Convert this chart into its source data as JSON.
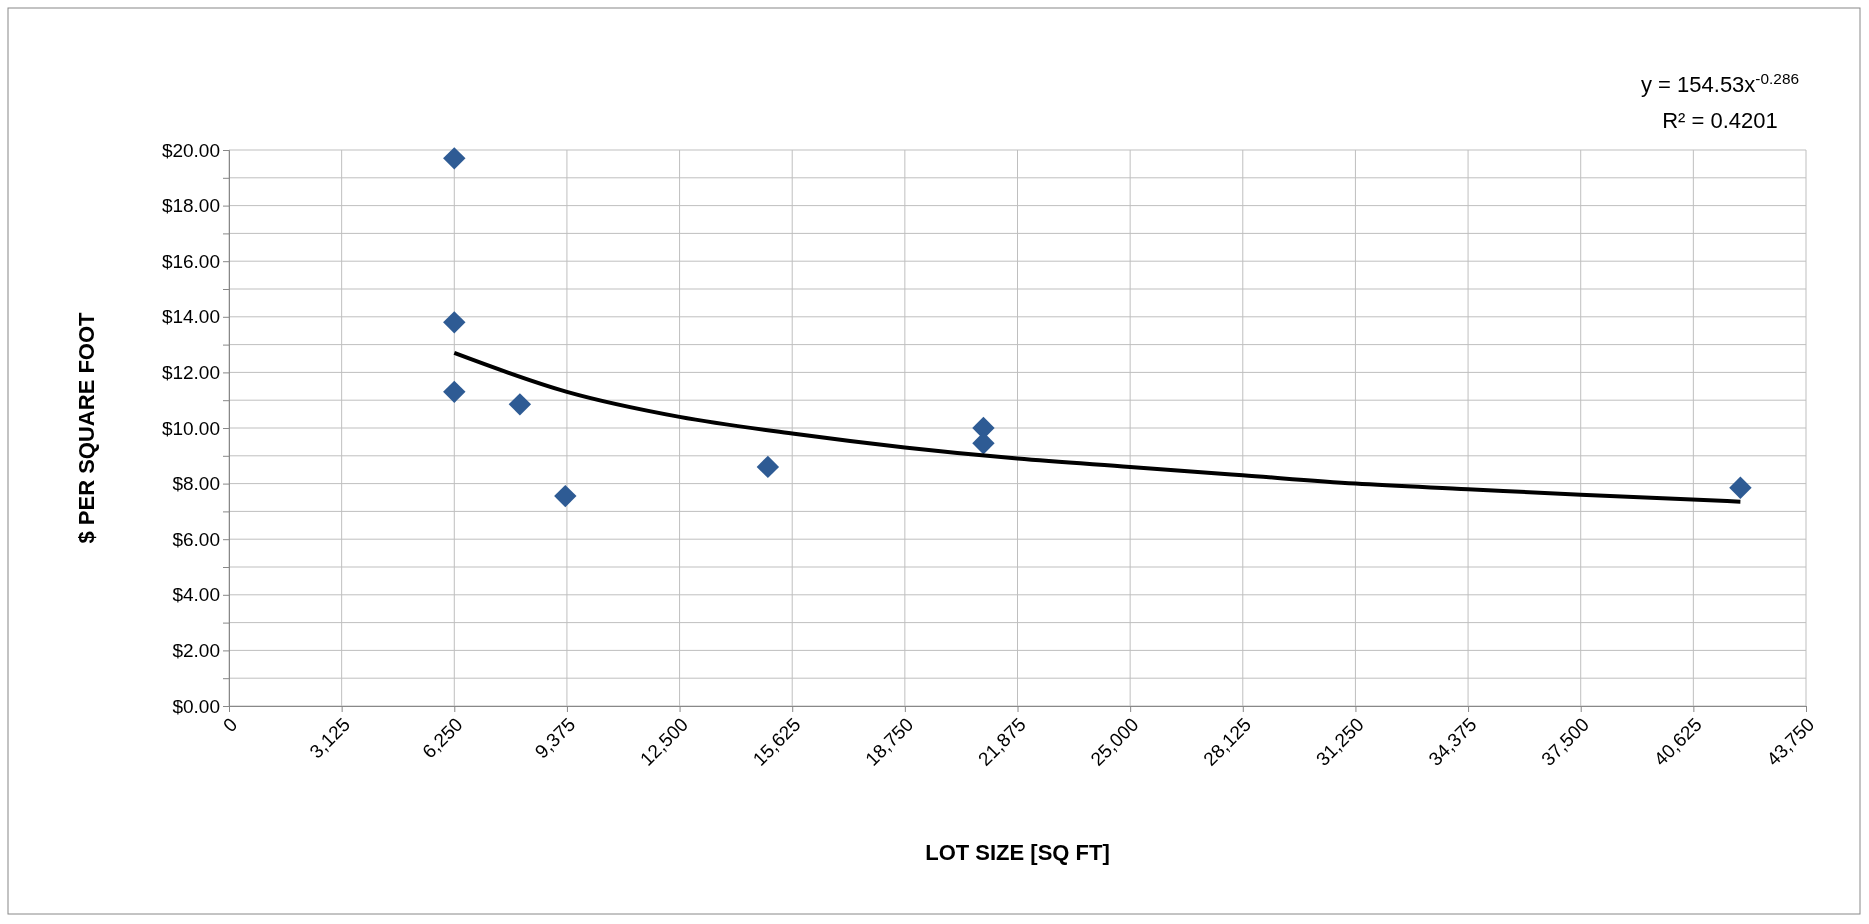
{
  "chart_data": {
    "type": "scatter",
    "xlabel": "LOT SIZE [SQ FT]",
    "ylabel": "$ PER SQUARE FOOT",
    "annotations": [
      "y = 154.53x$^{-0.286}$",
      "R² = 0.4201"
    ],
    "series": [
      {
        "color": "#2e5b94",
        "marker": "diamond",
        "x": [
          6250,
          6250,
          6250,
          8070,
          9330,
          14950,
          20930,
          20930,
          41930
        ],
        "values": [
          19.7,
          13.8,
          11.3,
          10.85,
          7.55,
          8.6,
          10.0,
          9.45,
          7.85
        ]
      },
      {
        "type": "line",
        "color": "#000000",
        "marker": "none",
        "x": [
          6250,
          9375,
          12500,
          15625,
          18750,
          21875,
          25000,
          28125,
          31250,
          34375,
          37500,
          41930
        ],
        "values": [
          12.7,
          11.3,
          10.4,
          9.8,
          9.3,
          8.9,
          8.6,
          8.3,
          8.0,
          7.8,
          7.6,
          7.35
        ]
      }
    ],
    "xlim": [
      0,
      43750
    ],
    "xticks": [
      {
        "value": 0,
        "label": "0"
      },
      {
        "value": 3125,
        "label": "3,125"
      },
      {
        "value": 6250,
        "label": "6,250"
      },
      {
        "value": 9375,
        "label": "9,375"
      },
      {
        "value": 12500,
        "label": "12,500"
      },
      {
        "value": 15625,
        "label": "15,625"
      },
      {
        "value": 18750,
        "label": "18,750"
      },
      {
        "value": 21875,
        "label": "21,875"
      },
      {
        "value": 25000,
        "label": "25,000"
      },
      {
        "value": 28125,
        "label": "28,125"
      },
      {
        "value": 31250,
        "label": "31,250"
      },
      {
        "value": 34375,
        "label": "34,375"
      },
      {
        "value": 37500,
        "label": "37,500"
      },
      {
        "value": 40625,
        "label": "40,625"
      },
      {
        "value": 43750,
        "label": "43,750"
      }
    ],
    "ylim": [
      0,
      20
    ],
    "yticks": [
      {
        "value": 0,
        "label": "$0.00"
      },
      {
        "value": 1,
        "label": null
      },
      {
        "value": 2,
        "label": "$2.00"
      },
      {
        "value": 3,
        "label": null
      },
      {
        "value": 4,
        "label": "$4.00"
      },
      {
        "value": 5,
        "label": null
      },
      {
        "value": 6,
        "label": "$6.00"
      },
      {
        "value": 7,
        "label": null
      },
      {
        "value": 8,
        "label": "$8.00"
      },
      {
        "value": 9,
        "label": null
      },
      {
        "value": 10,
        "label": "$10.00"
      },
      {
        "value": 11,
        "label": null
      },
      {
        "value": 12,
        "label": "$12.00"
      },
      {
        "value": 13,
        "label": null
      },
      {
        "value": 14,
        "label": "$14.00"
      },
      {
        "value": 15,
        "label": null
      },
      {
        "value": 16,
        "label": "$16.00"
      },
      {
        "value": 17,
        "label": null
      },
      {
        "value": 18,
        "label": "$18.00"
      },
      {
        "value": 19,
        "label": null
      },
      {
        "value": 20,
        "label": "$20.00"
      }
    ],
    "grid": true
  }
}
